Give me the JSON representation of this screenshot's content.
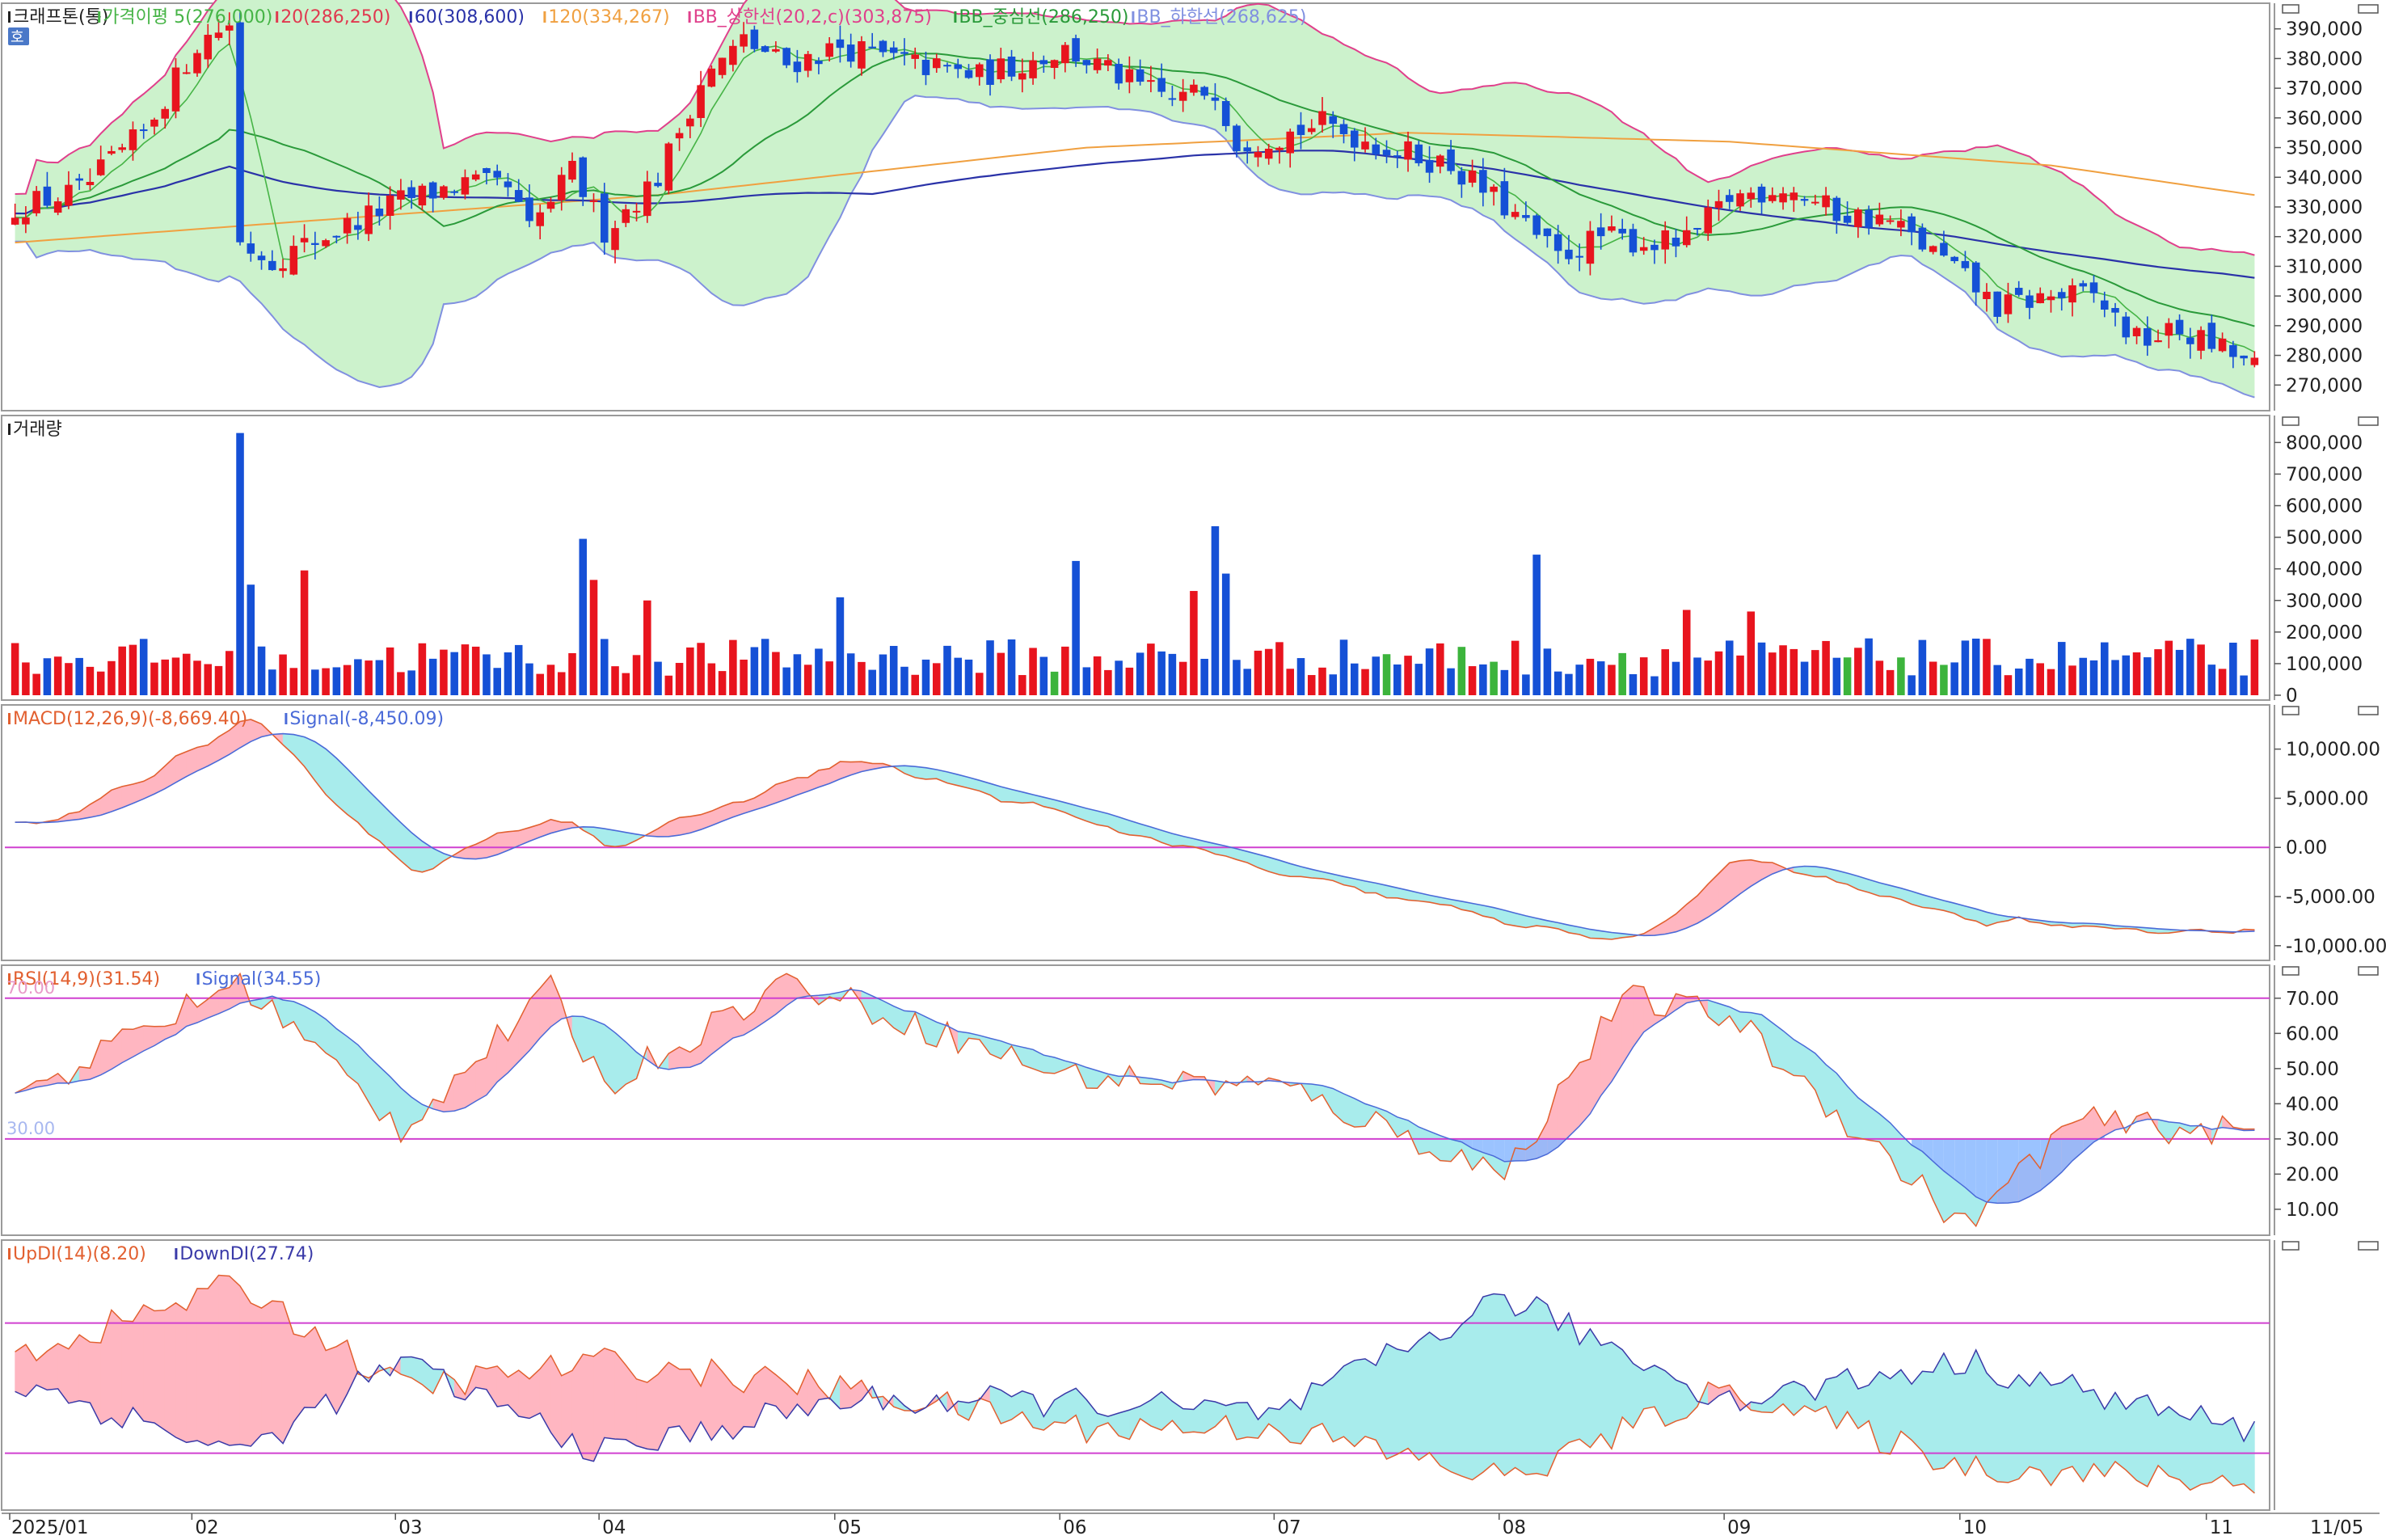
{
  "chart_data": {
    "type": "stock-chart",
    "instrument": "크래프톤(통)",
    "colors": {
      "up": "#e8141e",
      "down": "#1550d6",
      "volume_neutral": "#3cb43c",
      "ma5": "#46b446",
      "ma20": "#e0394f",
      "ma60": "#2a32a8",
      "ma120": "#f0a040",
      "bb_upper": "#e0408c",
      "bb_mid": "#2a9a3a",
      "bb_lower": "#8090e0",
      "bb_fill": "#ccf2cc",
      "macd": "#e26030",
      "macd_signal": "#4a6ad8",
      "ref_line": "#d040d0",
      "fill_pos": "#ffb6c1",
      "fill_neg": "#a8ecec",
      "rsi_oversold_fill": "#8ab8ff"
    },
    "price_pane": {
      "legend": [
        {
          "text": "크래프톤(통)",
          "color": "#222222"
        },
        {
          "text": "가격이평 5(276,000)",
          "color": "#46b446"
        },
        {
          "text": "20(286,250)",
          "color": "#e0394f"
        },
        {
          "text": "60(308,600)",
          "color": "#2a32a8"
        },
        {
          "text": "120(334,267)",
          "color": "#f0a040"
        },
        {
          "text": "BB_상한선(20,2,c)(303,875)",
          "color": "#e0408c"
        },
        {
          "text": "BB_중심선(286,250)",
          "color": "#2a9a3a"
        },
        {
          "text": "BB_하한선(268,625)",
          "color": "#8090e0"
        }
      ],
      "badge": "호",
      "y_ticks": [
        "390,000",
        "380,000",
        "370,000",
        "360,000",
        "350,000",
        "340,000",
        "330,000",
        "320,000",
        "310,000",
        "300,000",
        "290,000",
        "280,000",
        "270,000"
      ],
      "ylim": [
        263000,
        397000
      ],
      "x_label_months": [
        "2025/01",
        "02",
        "03",
        "04",
        "05",
        "06",
        "07",
        "08",
        "09",
        "10",
        "11"
      ],
      "last_date_label": "11/05",
      "ohlc_samples": [
        {
          "date": "2025/01",
          "close": 330000
        },
        {
          "date": "02 early",
          "close": 385000
        },
        {
          "date": "02 mid",
          "close": 318000
        },
        {
          "date": "03",
          "close": 330000
        },
        {
          "date": "04 early",
          "close": 320000
        },
        {
          "date": "04 late",
          "close": 380000
        },
        {
          "date": "05",
          "close": 378000
        },
        {
          "date": "06",
          "close": 375000
        },
        {
          "date": "06 late",
          "close": 355000
        },
        {
          "date": "07",
          "close": 352000
        },
        {
          "date": "08 early",
          "close": 313000
        },
        {
          "date": "08 late",
          "close": 322000
        },
        {
          "date": "09",
          "close": 333000
        },
        {
          "date": "10",
          "close": 296000
        },
        {
          "date": "11",
          "close": 276000
        }
      ]
    },
    "volume_pane": {
      "legend": [
        {
          "text": "거래량",
          "color": "#222222"
        }
      ],
      "y_ticks": [
        "800,000",
        "700,000",
        "600,000",
        "500,000",
        "400,000",
        "300,000",
        "200,000",
        "100,000",
        "0"
      ],
      "ylim": [
        0,
        870000
      ],
      "peak_samples": [
        {
          "date": "02 mid",
          "value": 830000
        },
        {
          "date": "03 late",
          "value": 495000
        },
        {
          "date": "05 late",
          "value": 425000
        },
        {
          "date": "06 mid",
          "value": 535000
        },
        {
          "date": "08 early",
          "value": 445000
        }
      ]
    },
    "macd_pane": {
      "legend": [
        {
          "text": "MACD(12,26,9)(-8,669.40)",
          "color": "#e26030"
        },
        {
          "text": "Signal(-8,450.09)",
          "color": "#4a6ad8"
        }
      ],
      "y_ticks": [
        "10,000.00",
        "5,000.00",
        "0.00",
        "-5,000.00",
        "-10,000.00"
      ],
      "ylim": [
        -11000,
        14000
      ],
      "reference": 0,
      "macd_keypoints": [
        {
          "date": "2025/01",
          "value": 2000
        },
        {
          "date": "02 mid",
          "value": 13000
        },
        {
          "date": "03",
          "value": -2500
        },
        {
          "date": "03 late",
          "value": 3500
        },
        {
          "date": "04",
          "value": 0
        },
        {
          "date": "05",
          "value": 9000
        },
        {
          "date": "06",
          "value": 3000
        },
        {
          "date": "07",
          "value": -3000
        },
        {
          "date": "08 late",
          "value": -10000
        },
        {
          "date": "09",
          "value": -1000
        },
        {
          "date": "10",
          "value": -7500
        },
        {
          "date": "11",
          "value": -8669
        }
      ]
    },
    "rsi_pane": {
      "legend": [
        {
          "text": "RSI(14,9)(31.54)",
          "color": "#e26030"
        },
        {
          "text": "Signal(34.55)",
          "color": "#4a6ad8"
        }
      ],
      "level_labels": [
        "70.00",
        "30.00"
      ],
      "y_ticks": [
        "70.00",
        "60.00",
        "50.00",
        "40.00",
        "30.00",
        "20.00",
        "10.00"
      ],
      "ylim": [
        4,
        78
      ],
      "overbought": 70,
      "oversold": 30,
      "rsi_keypoints": [
        {
          "date": "2025/01",
          "value": 45
        },
        {
          "date": "02 mid",
          "value": 75
        },
        {
          "date": "03",
          "value": 33
        },
        {
          "date": "03 late",
          "value": 72
        },
        {
          "date": "04",
          "value": 45
        },
        {
          "date": "04 late",
          "value": 75
        },
        {
          "date": "06",
          "value": 48
        },
        {
          "date": "07",
          "value": 45
        },
        {
          "date": "08",
          "value": 20
        },
        {
          "date": "08 late",
          "value": 70
        },
        {
          "date": "09",
          "value": 65
        },
        {
          "date": "10",
          "value": 5
        },
        {
          "date": "10 late",
          "value": 35
        },
        {
          "date": "11",
          "value": 31.54
        }
      ]
    },
    "dmi_pane": {
      "legend": [
        {
          "text": "UpDI(14)(8.20)",
          "color": "#e26030"
        },
        {
          "text": "DownDI(27.74)",
          "color": "#3a3aa8"
        }
      ],
      "ylim": [
        0,
        100
      ],
      "upper_ref": 70,
      "lower_ref": 20,
      "updi_keypoints": [
        {
          "date": "2025/01",
          "value": 60
        },
        {
          "date": "02 mid",
          "value": 85
        },
        {
          "date": "03",
          "value": 45
        },
        {
          "date": "04",
          "value": 55
        },
        {
          "date": "05",
          "value": 45
        },
        {
          "date": "06",
          "value": 30
        },
        {
          "date": "07",
          "value": 30
        },
        {
          "date": "08",
          "value": 10
        },
        {
          "date": "09",
          "value": 45
        },
        {
          "date": "10",
          "value": 15
        },
        {
          "date": "11",
          "value": 8.2
        }
      ],
      "downdi_keypoints": [
        {
          "date": "2025/01",
          "value": 45
        },
        {
          "date": "02 mid",
          "value": 20
        },
        {
          "date": "03",
          "value": 55
        },
        {
          "date": "04",
          "value": 20
        },
        {
          "date": "05",
          "value": 40
        },
        {
          "date": "06",
          "value": 40
        },
        {
          "date": "07",
          "value": 35
        },
        {
          "date": "08",
          "value": 80
        },
        {
          "date": "09",
          "value": 40
        },
        {
          "date": "10",
          "value": 55
        },
        {
          "date": "11",
          "value": 27.74
        }
      ]
    }
  }
}
